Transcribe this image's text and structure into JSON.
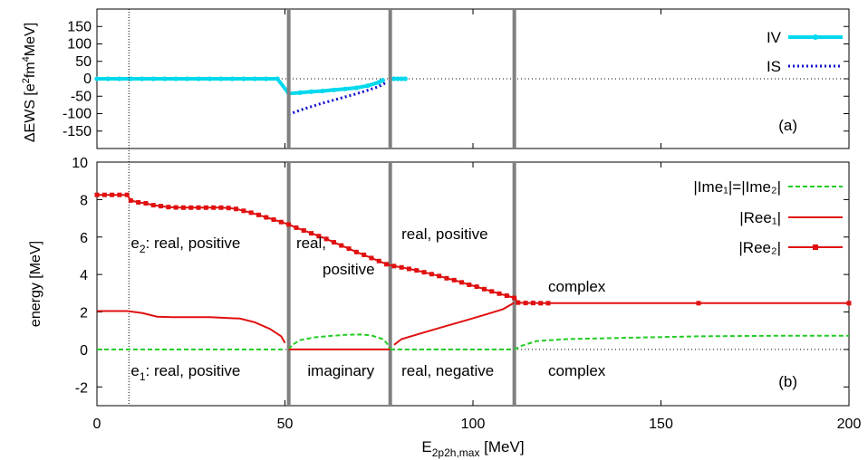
{
  "colors": {
    "iv": "#00d8ee",
    "is": "#1010d0",
    "ime": "#22cc22",
    "ree": "#e01010",
    "separator": "#808080"
  },
  "chart_data": [
    {
      "type": "line",
      "panel": "a",
      "panel_label": "(a)",
      "ylabel": {
        "base": "ΔEWS [e",
        "sup1": "2",
        "mid": "fm",
        "sup2": "4",
        "end": "MeV]"
      },
      "xlim": [
        0,
        200
      ],
      "ylim": [
        -200,
        200
      ],
      "yticks": [
        -150,
        -100,
        -50,
        0,
        50,
        100,
        150
      ],
      "legend_position": "top-right",
      "series": [
        {
          "name": "IV",
          "style": "solid-points",
          "points": [
            [
              0,
              0
            ],
            [
              3,
              0
            ],
            [
              6,
              0
            ],
            [
              9,
              0
            ],
            [
              12,
              0
            ],
            [
              15,
              0
            ],
            [
              18,
              0
            ],
            [
              21,
              0
            ],
            [
              24,
              0
            ],
            [
              27,
              0
            ],
            [
              30,
              0
            ],
            [
              33,
              0
            ],
            [
              36,
              0
            ],
            [
              39,
              0
            ],
            [
              42,
              0
            ],
            [
              45,
              0
            ],
            [
              48,
              0
            ],
            [
              51,
              -42
            ],
            [
              54,
              -40
            ],
            [
              57,
              -37
            ],
            [
              60,
              -35
            ],
            [
              63,
              -32
            ],
            [
              66,
              -29
            ],
            [
              69,
              -26
            ],
            [
              72,
              -20
            ],
            [
              75,
              -10
            ],
            [
              76,
              -4
            ]
          ]
        },
        {
          "name": "IV",
          "style": "solid-points",
          "legend": false,
          "points": [
            [
              79,
              0
            ],
            [
              80,
              0
            ],
            [
              81,
              0
            ],
            [
              82,
              0
            ]
          ]
        },
        {
          "name": "IS",
          "style": "dotted",
          "points": [
            [
              51,
              -102
            ],
            [
              54,
              -90
            ],
            [
              57,
              -80
            ],
            [
              60,
              -70
            ],
            [
              63,
              -61
            ],
            [
              66,
              -52
            ],
            [
              69,
              -43
            ],
            [
              72,
              -33
            ],
            [
              75,
              -22
            ],
            [
              77,
              -10
            ]
          ]
        }
      ]
    },
    {
      "type": "line",
      "panel": "b",
      "panel_label": "(b)",
      "ylabel": "energy [MeV]",
      "xlabel": {
        "base": "E",
        "sub": "2p2h,max",
        "end": " [MeV]"
      },
      "xlim": [
        0,
        200
      ],
      "ylim": [
        -3,
        10
      ],
      "xticks": [
        0,
        50,
        100,
        150,
        200
      ],
      "yticks": [
        -2,
        0,
        2,
        4,
        6,
        8,
        10
      ],
      "legend_position": "top-right",
      "separators_x": [
        51,
        78,
        111
      ],
      "dotted_x": 8.5,
      "legend": [
        {
          "label": "|Ime₁|=|Ime₂|",
          "style": "dashed"
        },
        {
          "label": "|Ree₁|",
          "style": "solid"
        },
        {
          "label": "|Ree₂|",
          "style": "solid-points"
        }
      ],
      "series": [
        {
          "name": "|Ime1|=|Ime2|",
          "segments": [
            [
              [
                0,
                0
              ],
              [
                50,
                0
              ]
            ],
            [
              [
                51,
                0
              ],
              [
                52,
                0.25
              ],
              [
                54,
                0.5
              ],
              [
                58,
                0.65
              ],
              [
                62,
                0.72
              ],
              [
                66,
                0.78
              ],
              [
                70,
                0.8
              ],
              [
                73,
                0.75
              ],
              [
                76,
                0.55
              ],
              [
                77,
                0.35
              ],
              [
                78,
                0
              ]
            ],
            [
              [
                78,
                0
              ],
              [
                110,
                0
              ]
            ],
            [
              [
                111,
                0
              ],
              [
                113,
                0.2
              ],
              [
                117,
                0.45
              ],
              [
                125,
                0.55
              ],
              [
                140,
                0.62
              ],
              [
                160,
                0.7
              ],
              [
                180,
                0.73
              ],
              [
                200,
                0.73
              ]
            ]
          ]
        },
        {
          "name": "|Ree1|",
          "segments": [
            [
              [
                0,
                2.05
              ],
              [
                8,
                2.05
              ],
              [
                12,
                1.95
              ],
              [
                16,
                1.75
              ],
              [
                20,
                1.72
              ],
              [
                30,
                1.72
              ],
              [
                38,
                1.65
              ],
              [
                42,
                1.45
              ],
              [
                46,
                1.1
              ],
              [
                49,
                0.7
              ],
              [
                50,
                0.35
              ]
            ],
            [
              [
                51,
                0
              ],
              [
                78,
                0
              ]
            ],
            [
              [
                79,
                0.25
              ],
              [
                81,
                0.55
              ],
              [
                86,
                0.85
              ],
              [
                92,
                1.2
              ],
              [
                98,
                1.55
              ],
              [
                104,
                1.9
              ],
              [
                108,
                2.15
              ],
              [
                111,
                2.5
              ]
            ]
          ]
        },
        {
          "name": "|Ree2|",
          "segments": [
            [
              [
                0,
                8.25
              ],
              [
                2,
                8.25
              ],
              [
                4,
                8.25
              ],
              [
                6,
                8.25
              ],
              [
                8,
                8.25
              ],
              [
                9,
                7.95
              ],
              [
                11,
                7.85
              ],
              [
                13,
                7.8
              ],
              [
                15,
                7.7
              ],
              [
                17,
                7.65
              ],
              [
                19,
                7.6
              ],
              [
                21,
                7.58
              ],
              [
                23,
                7.57
              ],
              [
                25,
                7.57
              ],
              [
                27,
                7.57
              ],
              [
                29,
                7.57
              ],
              [
                31,
                7.57
              ],
              [
                33,
                7.57
              ],
              [
                35,
                7.55
              ],
              [
                37,
                7.5
              ],
              [
                39,
                7.4
              ],
              [
                41,
                7.3
              ],
              [
                43,
                7.18
              ],
              [
                45,
                7.05
              ],
              [
                47,
                6.93
              ],
              [
                49,
                6.8
              ],
              [
                51,
                6.67
              ],
              [
                53,
                6.5
              ],
              [
                55,
                6.35
              ],
              [
                57,
                6.2
              ],
              [
                59,
                6.05
              ],
              [
                61,
                5.9
              ],
              [
                63,
                5.72
              ],
              [
                65,
                5.55
              ],
              [
                67,
                5.38
              ],
              [
                69,
                5.2
              ],
              [
                71,
                5.05
              ],
              [
                73,
                4.88
              ],
              [
                75,
                4.72
              ],
              [
                77,
                4.55
              ],
              [
                79,
                4.45
              ],
              [
                81,
                4.38
              ],
              [
                83,
                4.3
              ],
              [
                85,
                4.22
              ],
              [
                87,
                4.12
              ],
              [
                89,
                4.02
              ],
              [
                91,
                3.92
              ],
              [
                93,
                3.8
              ],
              [
                95,
                3.7
              ],
              [
                97,
                3.58
              ],
              [
                99,
                3.45
              ],
              [
                101,
                3.35
              ],
              [
                103,
                3.22
              ],
              [
                105,
                3.1
              ],
              [
                107,
                2.98
              ],
              [
                109,
                2.87
              ],
              [
                111,
                2.75
              ],
              [
                112,
                2.5
              ],
              [
                114,
                2.48
              ],
              [
                116,
                2.48
              ],
              [
                118,
                2.47
              ],
              [
                120,
                2.47
              ],
              [
                160,
                2.47
              ],
              [
                200,
                2.47
              ]
            ]
          ]
        }
      ],
      "annotations": [
        {
          "x": 9,
          "y": 5.4,
          "base": "e",
          "sub": "2",
          "end": ": real, positive"
        },
        {
          "x": 53,
          "y": 5.4,
          "text": "real,"
        },
        {
          "x": 60,
          "y": 4.0,
          "text": "positive"
        },
        {
          "x": 81,
          "y": 5.9,
          "text": "real, positive"
        },
        {
          "x": 120,
          "y": 3.1,
          "text": "complex"
        },
        {
          "x": 9,
          "y": -1.4,
          "base": "e",
          "sub": "1",
          "end": ": real, positive"
        },
        {
          "x": 56,
          "y": -1.4,
          "text": "imaginary"
        },
        {
          "x": 81,
          "y": -1.4,
          "text": "real, negative"
        },
        {
          "x": 120,
          "y": -1.4,
          "text": "complex"
        }
      ]
    }
  ]
}
